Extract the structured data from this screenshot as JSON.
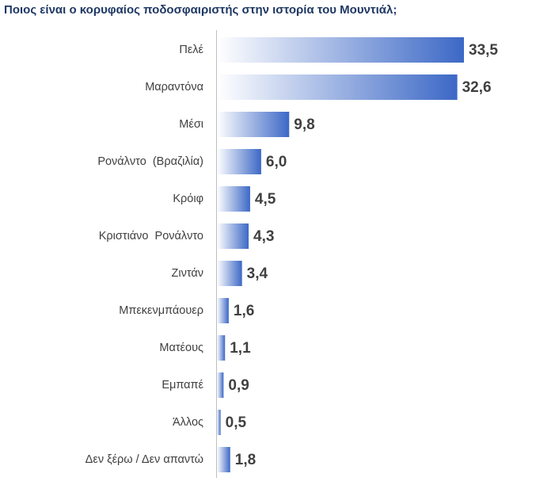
{
  "chart_data": {
    "type": "bar",
    "orientation": "horizontal",
    "title": "Ποιος είναι ο κορυφαίος ποδοσφαιριστής στην ιστορία του Μουντιάλ;",
    "categories": [
      "Πελέ",
      "Μαραντόνα",
      "Μέσι",
      "Ρονάλντο  (Βραζιλία)",
      "Κρόιφ",
      "Κριστιάνο  Ρονάλντο",
      "Ζιντάν",
      "Μπεκενμπάουερ",
      "Ματέους",
      "Εμπαπέ",
      "Άλλος",
      "Δεν ξέρω / Δεν απαντώ"
    ],
    "values": [
      33.5,
      32.6,
      9.8,
      6.0,
      4.5,
      4.3,
      3.4,
      1.6,
      1.1,
      0.9,
      0.5,
      1.8
    ],
    "value_labels": [
      "33,5",
      "32,6",
      "9,8",
      "6,0",
      "4,5",
      "4,3",
      "3,4",
      "1,6",
      "1,1",
      "0,9",
      "0,5",
      "1,8"
    ],
    "xlim": [
      0,
      33.5
    ],
    "grid": false,
    "bar_color": "#4472c4"
  }
}
